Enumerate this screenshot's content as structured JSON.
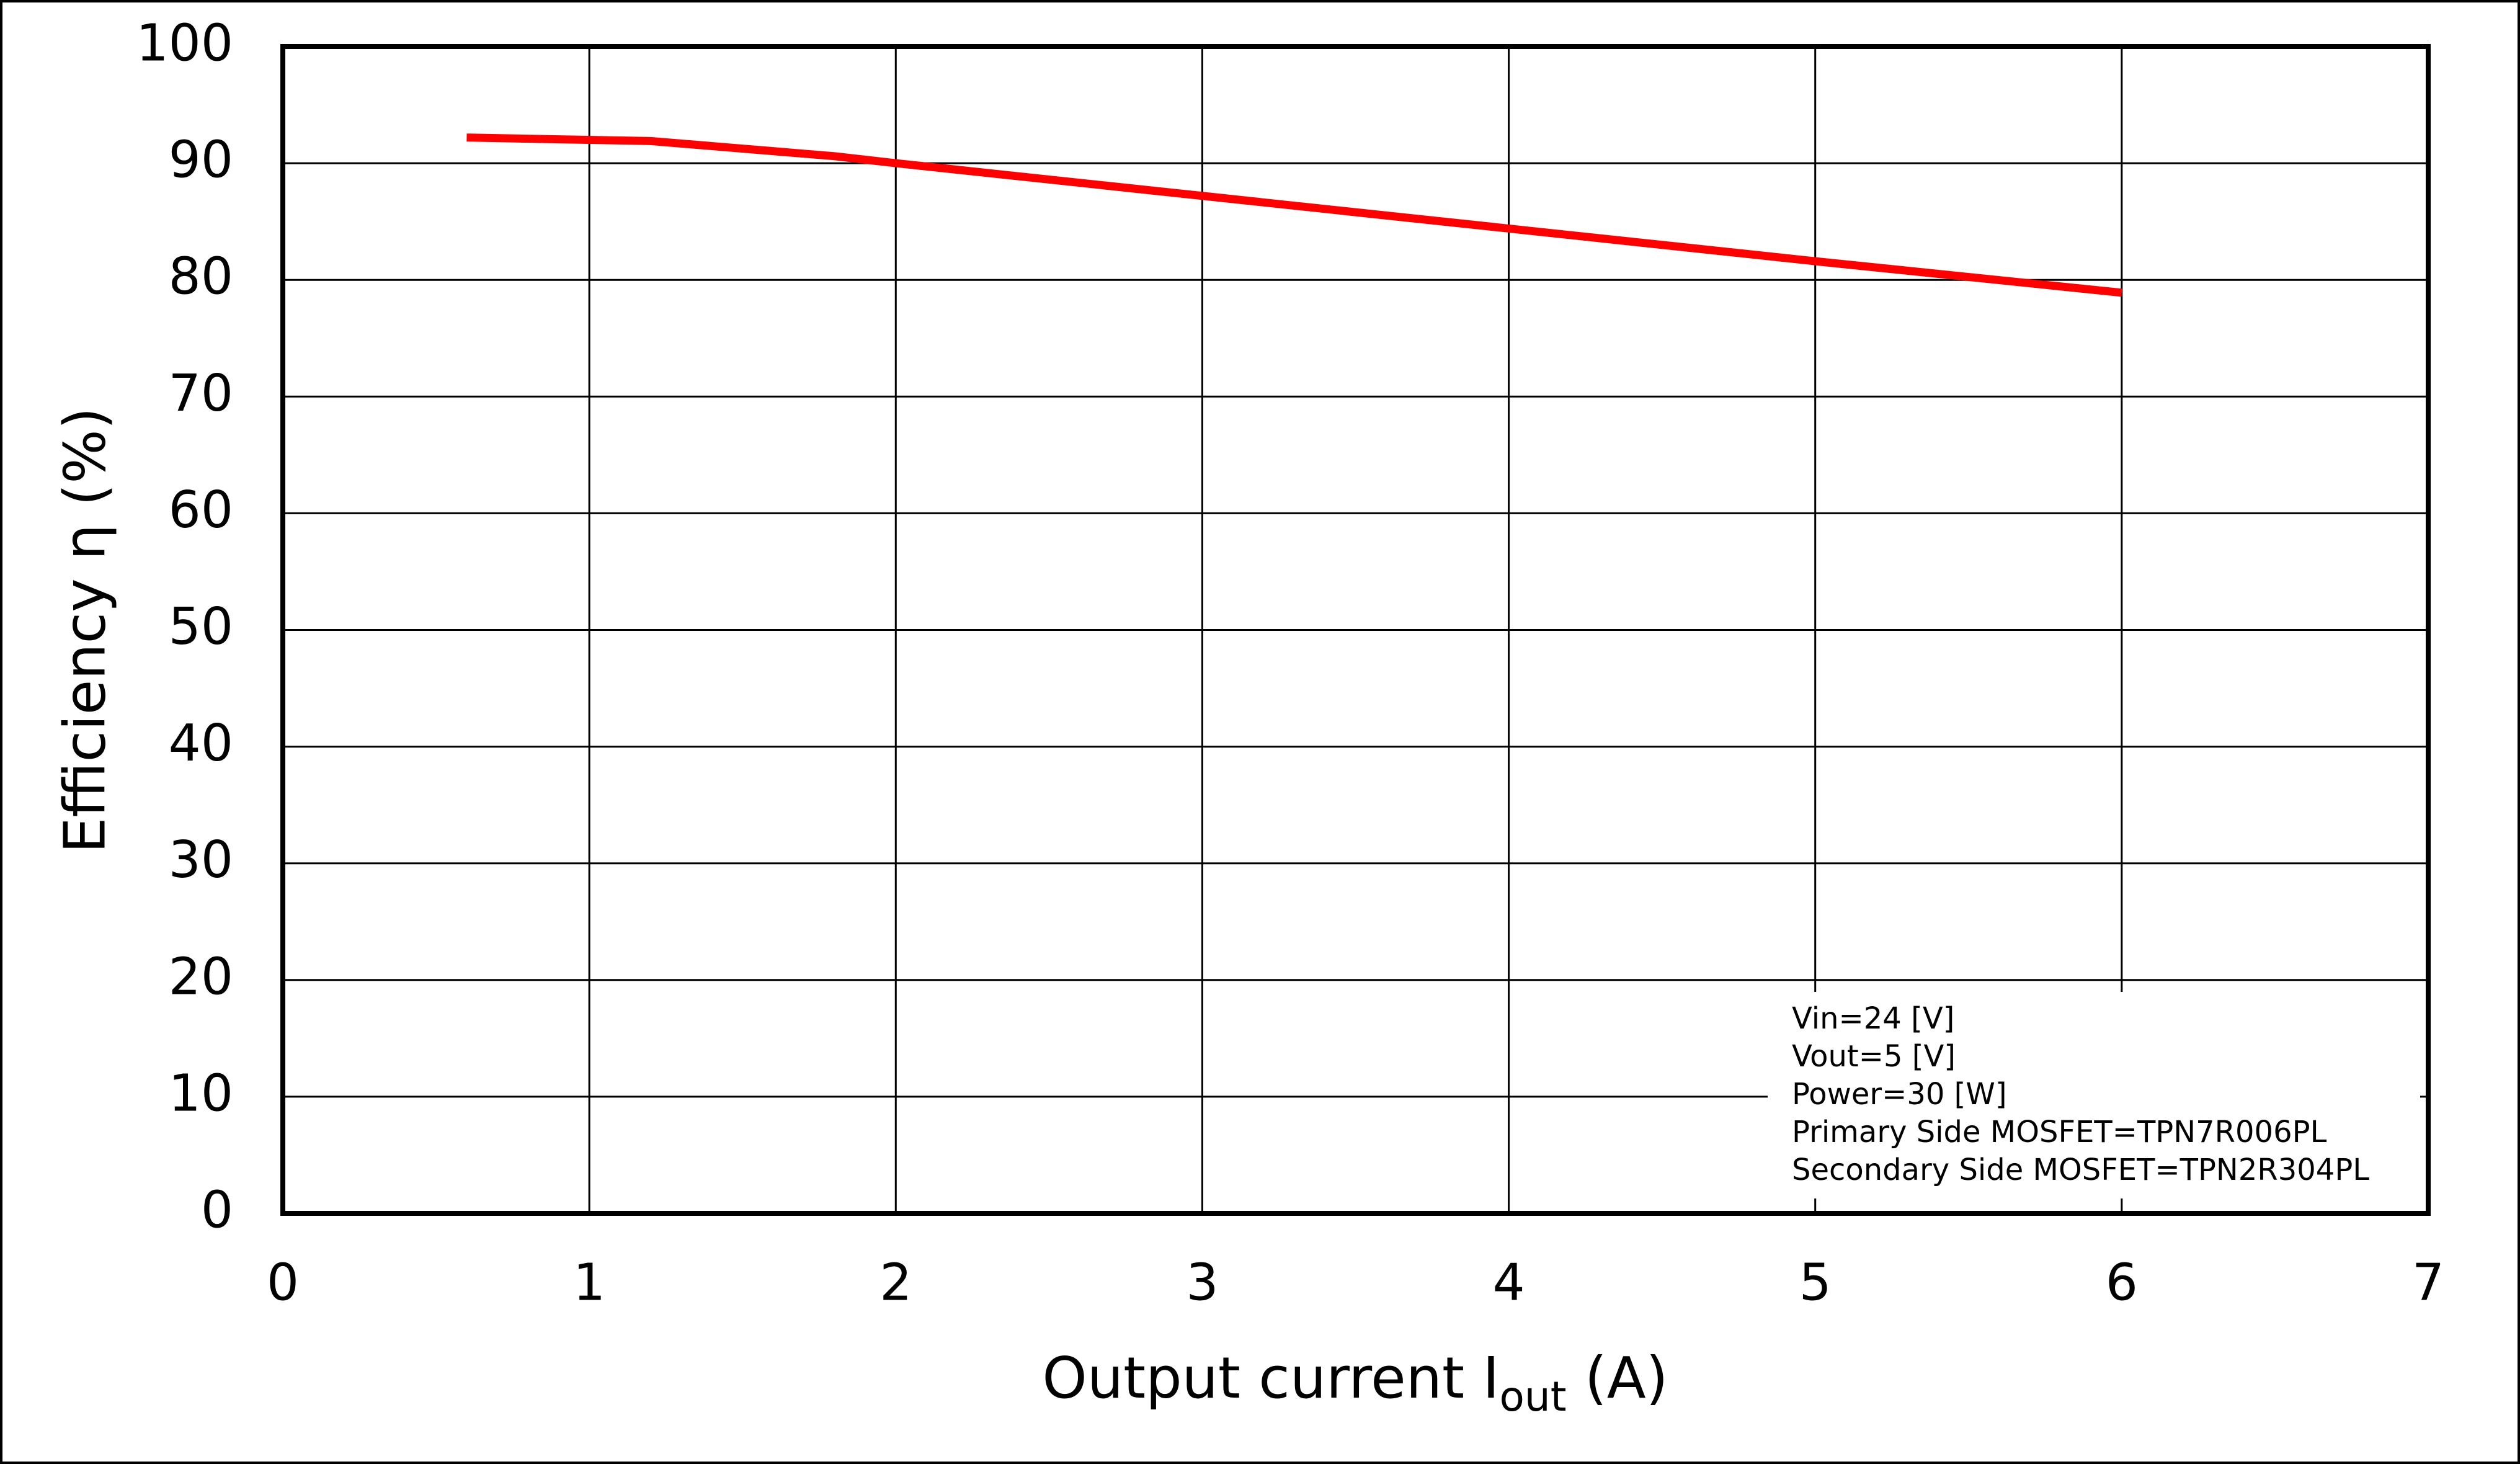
{
  "chart_data": {
    "type": "line",
    "xlabel": [
      "Output current  I",
      "out",
      " (A)"
    ],
    "ylabel": "Efficiency  η (%)",
    "x": [
      0.6,
      1.2,
      1.8,
      2,
      3,
      4,
      5,
      6
    ],
    "series": [
      {
        "color": "#ff0000",
        "values": [
          92.2,
          91.9,
          90.6,
          90,
          87.2,
          84.4,
          81.6,
          78.9
        ]
      }
    ],
    "xlim": [
      0,
      7
    ],
    "xticks": [
      0,
      1,
      2,
      3,
      4,
      5,
      6,
      7
    ],
    "ylim": [
      0,
      100
    ],
    "yticks": [
      0,
      10,
      20,
      30,
      40,
      50,
      60,
      70,
      80,
      90,
      100
    ],
    "grid": true,
    "annotations": [
      "Vin=24 [V]",
      "Vout=5 [V]",
      "Power=30 [W]",
      "Primary Side MOSFET=TPN7R006PL",
      "Secondary Side MOSFET=TPN2R304PL"
    ]
  }
}
